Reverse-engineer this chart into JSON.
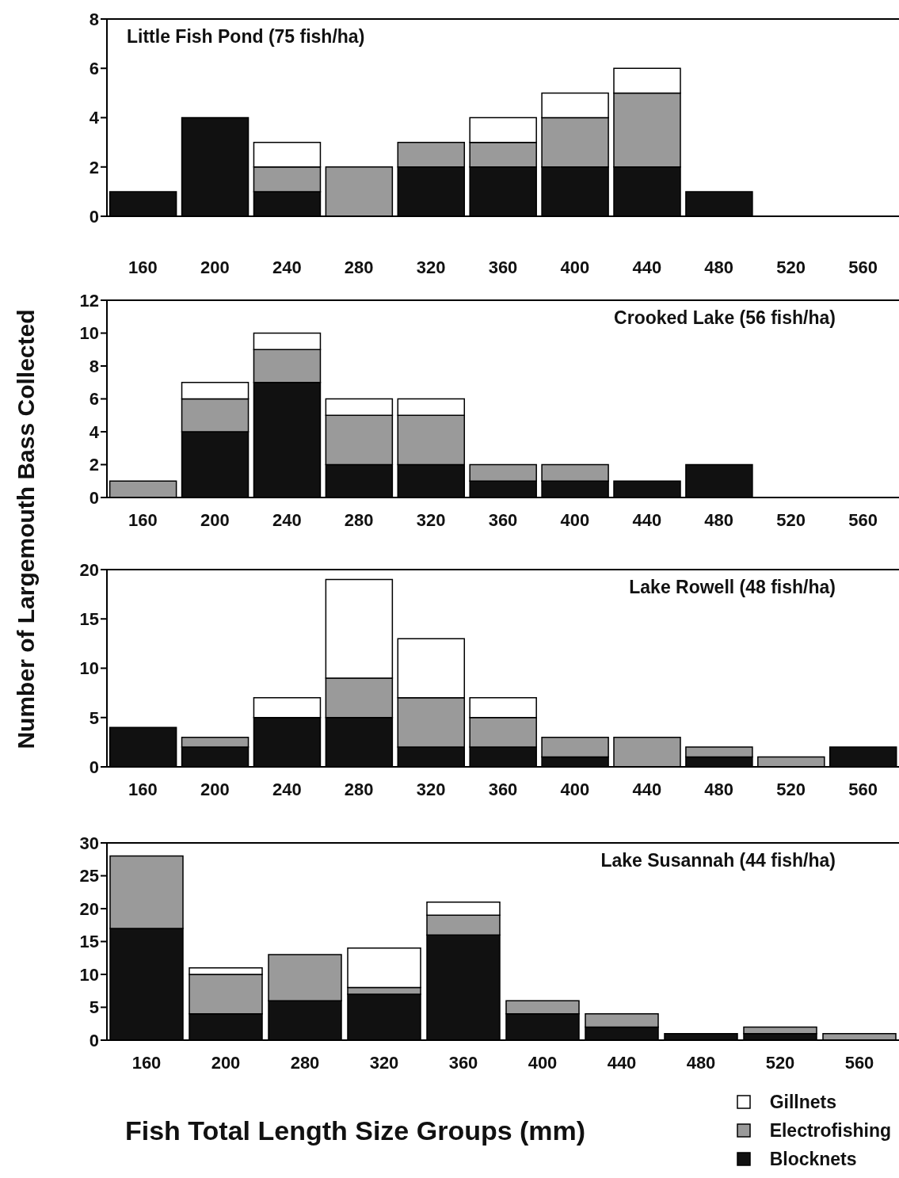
{
  "chart_data": [
    {
      "type": "bar",
      "title": "Little Fish Pond (75 fish/ha)",
      "ylabel": "Number of Largemouth Bass Collected",
      "stacked": true,
      "categories": [
        "160",
        "200",
        "240",
        "280",
        "320",
        "360",
        "400",
        "440",
        "480",
        "520",
        "560"
      ],
      "ylim": [
        0,
        8
      ],
      "yticks": [
        0,
        2,
        4,
        6,
        8
      ],
      "series": [
        {
          "color": "#111111",
          "values": [
            1,
            4,
            1,
            0,
            2,
            2,
            2,
            2,
            1,
            0,
            0
          ]
        },
        {
          "color": "#9a9a9a",
          "values": [
            0,
            0,
            1,
            2,
            1,
            1,
            2,
            3,
            0,
            0,
            0
          ]
        },
        {
          "color": "#ffffff",
          "values": [
            0,
            0,
            1,
            0,
            0,
            1,
            1,
            1,
            0,
            0,
            0
          ]
        }
      ]
    },
    {
      "type": "bar",
      "title": "Crooked Lake (56 fish/ha)",
      "stacked": true,
      "categories": [
        "160",
        "200",
        "240",
        "280",
        "320",
        "360",
        "400",
        "440",
        "480",
        "520",
        "560"
      ],
      "ylim": [
        0,
        12
      ],
      "yticks": [
        0,
        2,
        4,
        6,
        8,
        10,
        12
      ],
      "series": [
        {
          "color": "#111111",
          "values": [
            0,
            4,
            7,
            2,
            2,
            1,
            1,
            1,
            2,
            0,
            0
          ]
        },
        {
          "color": "#9a9a9a",
          "values": [
            1,
            2,
            2,
            3,
            3,
            1,
            1,
            0,
            0,
            0,
            0
          ]
        },
        {
          "color": "#ffffff",
          "values": [
            0,
            1,
            1,
            1,
            1,
            0,
            0,
            0,
            0,
            0,
            0
          ]
        }
      ]
    },
    {
      "type": "bar",
      "title": "Lake Rowell (48 fish/ha)",
      "stacked": true,
      "categories": [
        "160",
        "200",
        "240",
        "280",
        "320",
        "360",
        "400",
        "440",
        "480",
        "520",
        "560"
      ],
      "ylim": [
        0,
        20
      ],
      "yticks": [
        0,
        5,
        10,
        15,
        20
      ],
      "series": [
        {
          "color": "#111111",
          "values": [
            4,
            2,
            5,
            5,
            2,
            2,
            1,
            0,
            1,
            0,
            2
          ]
        },
        {
          "color": "#9a9a9a",
          "values": [
            0,
            1,
            0,
            4,
            5,
            3,
            2,
            3,
            1,
            1,
            0
          ]
        },
        {
          "color": "#ffffff",
          "values": [
            0,
            0,
            2,
            10,
            6,
            2,
            0,
            0,
            0,
            0,
            0
          ]
        }
      ]
    },
    {
      "type": "bar",
      "title": "Lake Susannah (44 fish/ha)",
      "xlabel": "Fish Total Length Size Groups (mm)",
      "stacked": true,
      "legend": "bottom right",
      "categories": [
        "160",
        "200",
        "280",
        "320",
        "360",
        "400",
        "440",
        "480",
        "520",
        "560"
      ],
      "ylim": [
        0,
        30
      ],
      "yticks": [
        0,
        5,
        10,
        15,
        20,
        25,
        30
      ],
      "series": [
        {
          "name": "Blocknets",
          "color": "#111111",
          "values": [
            17,
            4,
            6,
            7,
            16,
            4,
            2,
            1,
            1,
            0
          ]
        },
        {
          "name": "Electrofishing",
          "color": "#9a9a9a",
          "values": [
            11,
            6,
            7,
            1,
            3,
            2,
            2,
            0,
            1,
            1
          ]
        },
        {
          "name": "Gillnets",
          "color": "#ffffff",
          "values": [
            0,
            1,
            0,
            6,
            2,
            0,
            0,
            0,
            0,
            0
          ]
        }
      ]
    }
  ]
}
